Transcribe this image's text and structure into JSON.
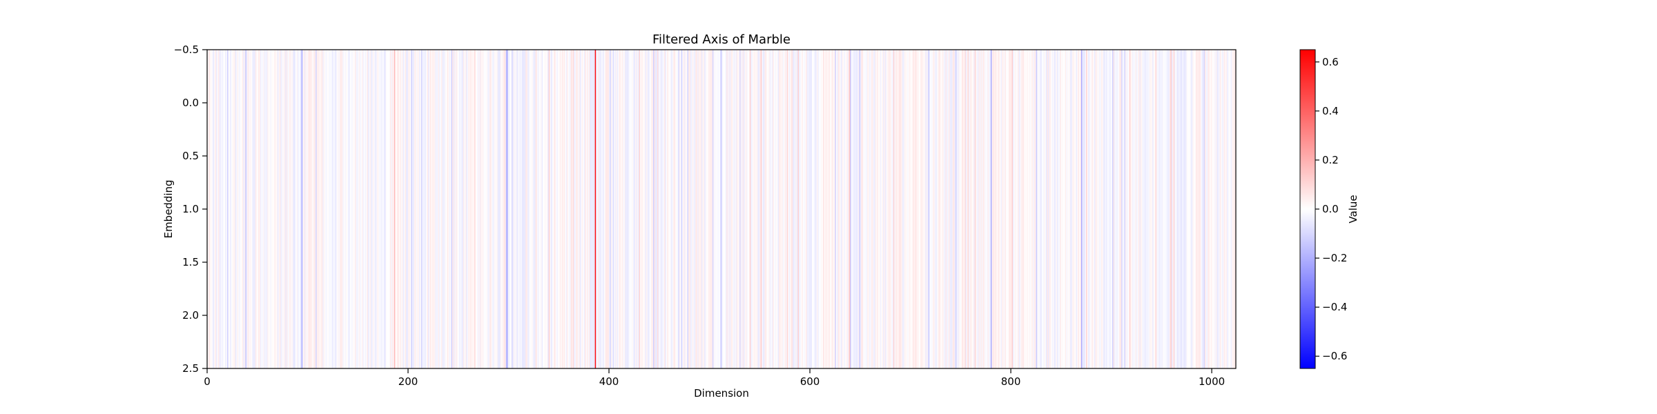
{
  "chart_data": {
    "type": "heatmap",
    "title": "Filtered Axis of Marble",
    "xlabel": "Dimension",
    "ylabel": "Embedding",
    "xlim": [
      0,
      1024
    ],
    "ylim": [
      2.5,
      -0.5
    ],
    "x_ticks": [
      0,
      200,
      400,
      600,
      800,
      1000
    ],
    "x_tick_labels": [
      "0",
      "200",
      "400",
      "600",
      "800",
      "1000"
    ],
    "y_ticks": [
      -0.5,
      0.0,
      0.5,
      1.0,
      1.5,
      2.0,
      2.5
    ],
    "y_tick_labels": [
      "−0.5",
      "0.0",
      "0.5",
      "1.0",
      "1.5",
      "2.0",
      "2.5"
    ],
    "colormap": "bwr",
    "colormap_colors": {
      "low": "#0000ff",
      "mid": "#ffffff",
      "high": "#ff0000"
    },
    "vmin": -0.65,
    "vmax": 0.65,
    "colorbar": {
      "label": "Value",
      "ticks": [
        -0.6,
        -0.4,
        -0.2,
        0.0,
        0.2,
        0.4,
        0.6
      ],
      "tick_labels": [
        "−0.6",
        "−0.4",
        "−0.2",
        "0.0",
        "0.2",
        "0.4",
        "0.6"
      ]
    },
    "num_dimensions": 1024,
    "num_embeddings": 3,
    "highlighted_columns": [
      {
        "dimension": 386,
        "value": 0.62
      },
      {
        "dimension": 298,
        "value": -0.28
      },
      {
        "dimension": 94,
        "value": -0.22
      },
      {
        "dimension": 186,
        "value": 0.18
      },
      {
        "dimension": 780,
        "value": -0.22
      },
      {
        "dimension": 870,
        "value": -0.22
      }
    ],
    "note_values": "All three embeddings share identical values per dimension; background columns are near zero (|value| < 0.15)."
  }
}
